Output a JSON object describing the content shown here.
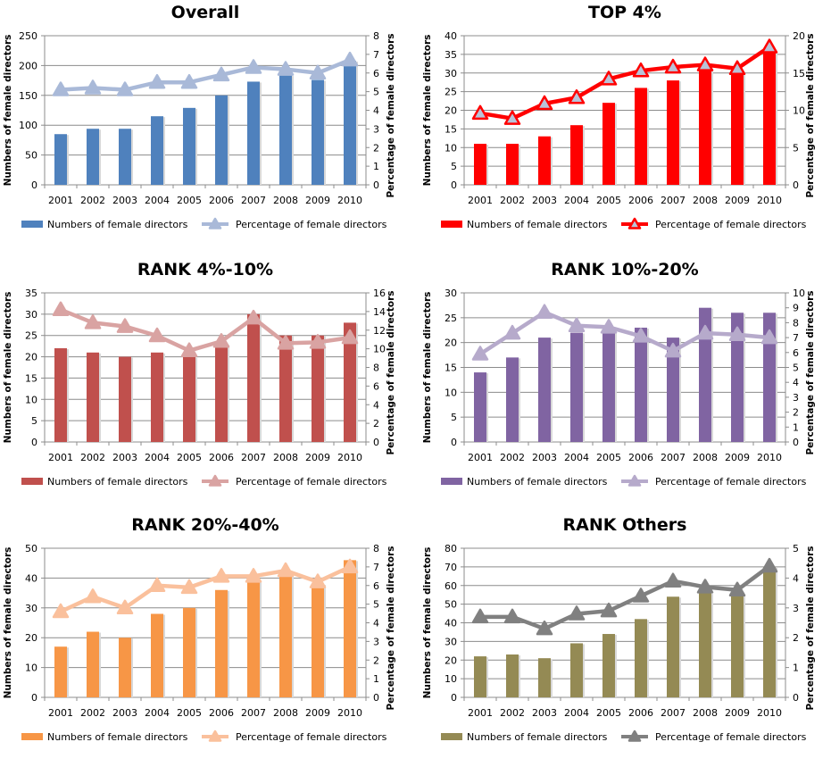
{
  "chart_data": [
    {
      "type": "bar+line",
      "title": "Overall",
      "categories": [
        "2001",
        "2002",
        "2003",
        "2004",
        "2005",
        "2006",
        "2007",
        "2008",
        "2009",
        "2010"
      ],
      "ylabel": "Numbers of female directors",
      "y2label": "Percentage of female directors",
      "ylim": [
        0,
        250
      ],
      "ystep": 50,
      "y2lim": [
        0,
        8
      ],
      "y2step": 1,
      "grid": true,
      "legend": "bottom",
      "colors": {
        "bar": "#4F81BD",
        "line": "#A9B9D8",
        "marker_fill": "#A9B9D8",
        "marker_stroke": "#A9B9D8"
      },
      "series": [
        {
          "name": "Numbers of female directors",
          "type": "bar",
          "axis": "left",
          "values": [
            85,
            94,
            94,
            115,
            129,
            150,
            173,
            184,
            176,
            208
          ]
        },
        {
          "name": "Percentage of female directors",
          "type": "line",
          "axis": "right",
          "values": [
            5.1,
            5.2,
            5.1,
            5.5,
            5.5,
            5.9,
            6.3,
            6.2,
            6.0,
            6.7
          ]
        }
      ]
    },
    {
      "type": "bar+line",
      "title": "TOP 4%",
      "categories": [
        "2001",
        "2002",
        "2003",
        "2004",
        "2005",
        "2006",
        "2007",
        "2008",
        "2009",
        "2010"
      ],
      "ylabel": "Numbers of female directors",
      "y2label": "Percentage of female directors",
      "ylim": [
        0,
        40
      ],
      "ystep": 5,
      "y2lim": [
        0,
        20
      ],
      "y2step": 5,
      "grid": true,
      "legend": "bottom",
      "colors": {
        "bar": "#FF0000",
        "line": "#FF0000",
        "marker_fill": "#B9C3D8",
        "marker_stroke": "#FF0000"
      },
      "series": [
        {
          "name": "Numbers of female directors",
          "type": "bar",
          "axis": "left",
          "values": [
            11,
            11,
            13,
            16,
            22,
            26,
            28,
            31,
            30,
            36
          ]
        },
        {
          "name": "Percentage of female directors",
          "type": "line",
          "axis": "right",
          "values": [
            9.6,
            8.9,
            10.9,
            11.7,
            14.2,
            15.3,
            15.8,
            16.1,
            15.6,
            18.5
          ]
        }
      ]
    },
    {
      "type": "bar+line",
      "title": "RANK 4%-10%",
      "categories": [
        "2001",
        "2002",
        "2003",
        "2004",
        "2005",
        "2006",
        "2007",
        "2008",
        "2009",
        "2010"
      ],
      "ylabel": "Numbers of female directors",
      "y2label": "Percentage of female directors",
      "ylim": [
        0,
        35
      ],
      "ystep": 5,
      "y2lim": [
        0,
        16
      ],
      "y2step": 2,
      "grid": true,
      "legend": "bottom",
      "colors": {
        "bar": "#C0504D",
        "line": "#D9A3A2",
        "marker_fill": "#D9A3A2",
        "marker_stroke": "#D9A3A2"
      },
      "series": [
        {
          "name": "Numbers of female directors",
          "type": "bar",
          "axis": "left",
          "values": [
            22,
            21,
            20,
            21,
            20,
            23,
            30,
            25,
            25,
            28
          ]
        },
        {
          "name": "Percentage of female directors",
          "type": "line",
          "axis": "right",
          "values": [
            14.2,
            12.8,
            12.4,
            11.4,
            9.8,
            10.8,
            13.3,
            10.6,
            10.7,
            11.2
          ]
        }
      ]
    },
    {
      "type": "bar+line",
      "title": "RANK 10%-20%",
      "categories": [
        "2001",
        "2002",
        "2003",
        "2004",
        "2005",
        "2006",
        "2007",
        "2008",
        "2009",
        "2010"
      ],
      "ylabel": "Numbers of female directors",
      "y2label": "Percentage of female directors",
      "ylim": [
        0,
        30
      ],
      "ystep": 5,
      "y2lim": [
        0,
        10
      ],
      "y2step": 1,
      "grid": true,
      "legend": "bottom",
      "colors": {
        "bar": "#8064A2",
        "line": "#B6AACB",
        "marker_fill": "#B6AACB",
        "marker_stroke": "#B6AACB"
      },
      "series": [
        {
          "name": "Numbers of female directors",
          "type": "bar",
          "axis": "left",
          "values": [
            14,
            17,
            21,
            22,
            23,
            23,
            21,
            27,
            26,
            26
          ]
        },
        {
          "name": "Percentage of female directors",
          "type": "line",
          "axis": "right",
          "values": [
            5.9,
            7.3,
            8.7,
            7.8,
            7.7,
            7.1,
            6.1,
            7.3,
            7.2,
            7.0
          ]
        }
      ]
    },
    {
      "type": "bar+line",
      "title": "RANK 20%-40%",
      "categories": [
        "2001",
        "2002",
        "2003",
        "2004",
        "2005",
        "2006",
        "2007",
        "2008",
        "2009",
        "2010"
      ],
      "ylabel": "Numbers of female directors",
      "y2label": "Percentage of female directors",
      "ylim": [
        0,
        50
      ],
      "ystep": 10,
      "y2lim": [
        0,
        8
      ],
      "y2step": 1,
      "grid": true,
      "legend": "bottom",
      "colors": {
        "bar": "#F79646",
        "line": "#FAC09C",
        "marker_fill": "#FAC09C",
        "marker_stroke": "#FAC09C"
      },
      "series": [
        {
          "name": "Numbers of female directors",
          "type": "bar",
          "axis": "left",
          "values": [
            17,
            22,
            20,
            28,
            30,
            36,
            39,
            41,
            38,
            46
          ]
        },
        {
          "name": "Percentage of female directors",
          "type": "line",
          "axis": "right",
          "values": [
            4.6,
            5.4,
            4.8,
            6.0,
            5.9,
            6.5,
            6.5,
            6.8,
            6.2,
            7.0
          ]
        }
      ]
    },
    {
      "type": "bar+line",
      "title": "RANK Others",
      "categories": [
        "2001",
        "2002",
        "2003",
        "2004",
        "2005",
        "2006",
        "2007",
        "2008",
        "2009",
        "2010"
      ],
      "ylabel": "Numbers of female directors",
      "y2label": "Percentage of female directors",
      "ylim": [
        0,
        80
      ],
      "ystep": 10,
      "y2lim": [
        0,
        5
      ],
      "y2step": 1,
      "grid": true,
      "legend": "bottom",
      "colors": {
        "bar": "#948A54",
        "line": "#808080",
        "marker_fill": "#808080",
        "marker_stroke": "#808080"
      },
      "series": [
        {
          "name": "Numbers of female directors",
          "type": "bar",
          "axis": "left",
          "values": [
            22,
            23,
            21,
            29,
            34,
            42,
            54,
            56,
            55,
            70
          ]
        },
        {
          "name": "Percentage of female directors",
          "type": "line",
          "axis": "right",
          "values": [
            2.7,
            2.7,
            2.3,
            2.8,
            2.9,
            3.4,
            3.9,
            3.7,
            3.6,
            4.4
          ]
        }
      ]
    }
  ]
}
